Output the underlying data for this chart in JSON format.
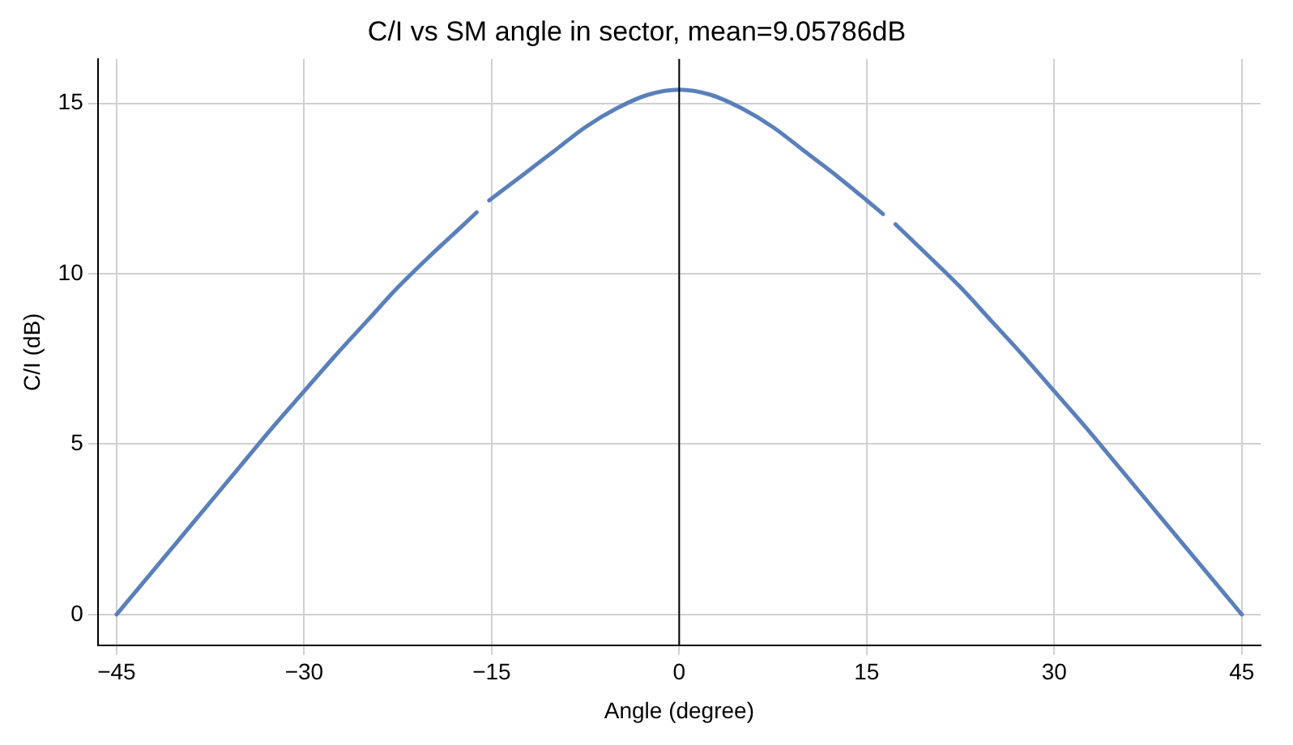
{
  "chart_data": {
    "type": "line",
    "title": "C/I vs SM angle in sector, mean=9.05786dB",
    "xlabel": "Angle (degree)",
    "ylabel": "C/I (dB)",
    "x": [
      -45,
      -42.5,
      -40,
      -37.5,
      -35,
      -32.5,
      -30,
      -27.5,
      -25,
      -22.5,
      -20,
      -17.5,
      -16.2,
      -15.7,
      -15.2,
      -12.5,
      -10,
      -7.5,
      -5,
      -2.5,
      0,
      2.5,
      5,
      7.5,
      10,
      12.5,
      15,
      16.3,
      16.8,
      17.3,
      20,
      22.5,
      25,
      27.5,
      30,
      32.5,
      35,
      37.5,
      40,
      42.5,
      45
    ],
    "series": [
      {
        "color": "#5a80bb",
        "values": [
          0,
          1.1,
          2.2,
          3.3,
          4.4,
          5.5,
          6.55,
          7.6,
          8.6,
          9.6,
          10.5,
          11.35,
          11.8,
          null,
          12.15,
          12.9,
          13.6,
          14.3,
          14.85,
          15.25,
          15.4,
          15.25,
          14.85,
          14.3,
          13.6,
          12.9,
          12.15,
          11.75,
          null,
          11.45,
          10.5,
          9.6,
          8.6,
          7.6,
          6.55,
          5.5,
          4.4,
          3.3,
          2.2,
          1.1,
          0
        ]
      }
    ],
    "xlim": [
      -46.5,
      46.5
    ],
    "xticks": [
      {
        "value": -45,
        "label": "−45"
      },
      {
        "value": -30,
        "label": "−30"
      },
      {
        "value": -15,
        "label": "−15"
      },
      0,
      15,
      30,
      45
    ],
    "ylim": [
      -0.9,
      16.3
    ],
    "yticks": [
      0,
      5,
      10,
      15
    ],
    "ref_lines": [
      {
        "axis": "x",
        "value": 0,
        "color": "#000000"
      }
    ],
    "grid": true,
    "legend": false,
    "marker": "none",
    "line_style": "solid"
  }
}
